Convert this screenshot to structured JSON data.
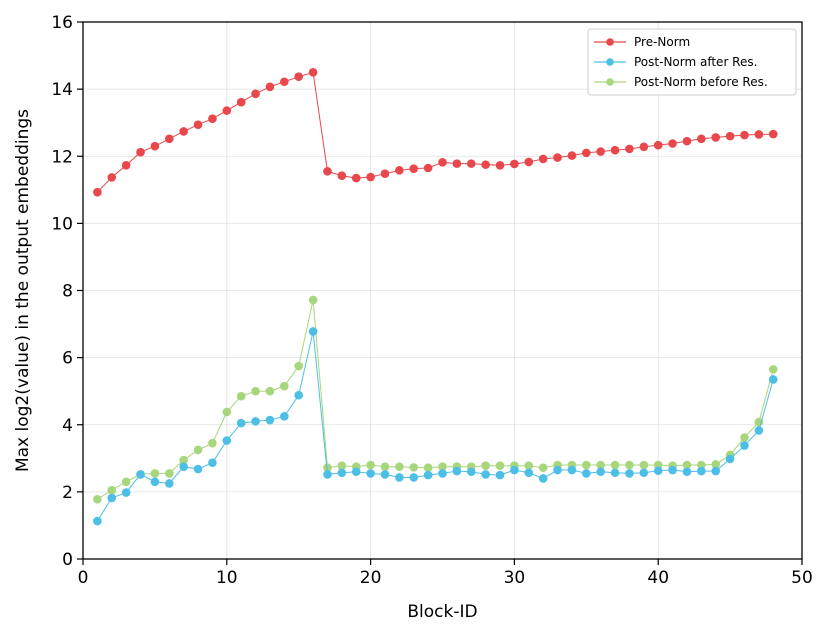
{
  "chart_data": {
    "type": "line",
    "title": "",
    "xlabel": "Block-ID",
    "ylabel": "Max log2(value) in the output embeddings",
    "xlim": [
      0,
      50
    ],
    "ylim": [
      0,
      16
    ],
    "xticks": [
      0,
      10,
      20,
      30,
      40,
      50
    ],
    "yticks": [
      0,
      2,
      4,
      6,
      8,
      10,
      12,
      14,
      16
    ],
    "grid": true,
    "legend_position": "top-right",
    "x": [
      1,
      2,
      3,
      4,
      5,
      6,
      7,
      8,
      9,
      10,
      11,
      12,
      13,
      14,
      15,
      16,
      17,
      18,
      19,
      20,
      21,
      22,
      23,
      24,
      25,
      26,
      27,
      28,
      29,
      30,
      31,
      32,
      33,
      34,
      35,
      36,
      37,
      38,
      39,
      40,
      41,
      42,
      43,
      44,
      45,
      46,
      47,
      48
    ],
    "series": [
      {
        "name": "Pre-Norm",
        "color": "#e8474b",
        "values": [
          10.93,
          11.37,
          11.73,
          12.12,
          12.3,
          12.52,
          12.74,
          12.94,
          13.12,
          13.36,
          13.61,
          13.86,
          14.07,
          14.22,
          14.37,
          14.5,
          11.55,
          11.42,
          11.35,
          11.38,
          11.48,
          11.58,
          11.63,
          11.65,
          11.82,
          11.78,
          11.78,
          11.75,
          11.73,
          11.77,
          11.83,
          11.92,
          11.96,
          12.02,
          12.1,
          12.14,
          12.18,
          12.22,
          12.28,
          12.33,
          12.38,
          12.45,
          12.52,
          12.56,
          12.6,
          12.63,
          12.65,
          12.66
        ]
      },
      {
        "name": "Post-Norm after Res.",
        "color": "#4dbfe6",
        "values": [
          1.13,
          1.82,
          1.98,
          2.52,
          2.3,
          2.25,
          2.75,
          2.68,
          2.87,
          3.53,
          4.05,
          4.1,
          4.14,
          4.25,
          4.88,
          6.78,
          2.52,
          2.57,
          2.6,
          2.55,
          2.52,
          2.43,
          2.43,
          2.5,
          2.55,
          2.62,
          2.6,
          2.52,
          2.5,
          2.65,
          2.57,
          2.4,
          2.65,
          2.65,
          2.55,
          2.6,
          2.57,
          2.55,
          2.57,
          2.63,
          2.65,
          2.6,
          2.62,
          2.62,
          2.98,
          3.38,
          3.83,
          5.35
        ]
      },
      {
        "name": "Post-Norm before Res.",
        "color": "#a8d67c",
        "values": [
          1.78,
          2.05,
          2.3,
          2.52,
          2.55,
          2.55,
          2.95,
          3.25,
          3.45,
          4.38,
          4.85,
          5.0,
          5.0,
          5.15,
          5.75,
          7.72,
          2.72,
          2.78,
          2.75,
          2.8,
          2.75,
          2.75,
          2.73,
          2.72,
          2.75,
          2.75,
          2.75,
          2.78,
          2.78,
          2.78,
          2.78,
          2.72,
          2.8,
          2.8,
          2.8,
          2.8,
          2.8,
          2.8,
          2.8,
          2.8,
          2.78,
          2.8,
          2.8,
          2.82,
          3.1,
          3.62,
          4.08,
          5.65
        ]
      }
    ]
  }
}
